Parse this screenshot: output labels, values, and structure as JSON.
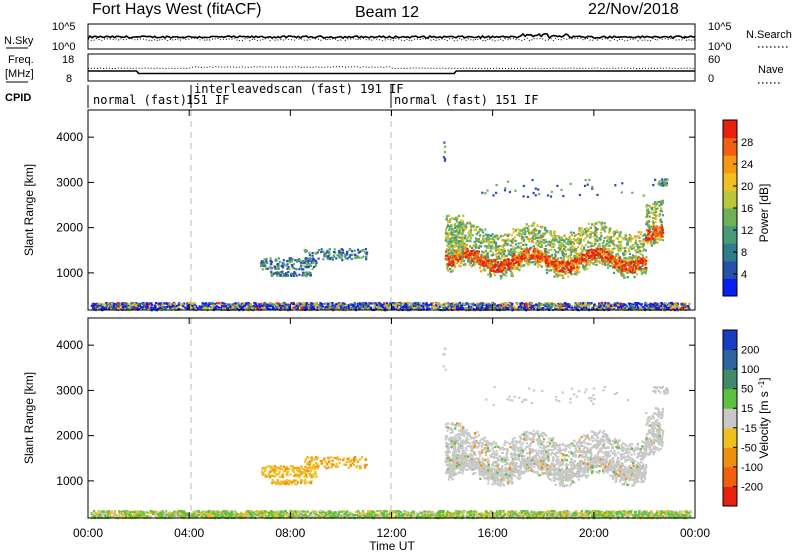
{
  "header": {
    "title": "Fort Hays West (fitACF)",
    "beam": "Beam 12",
    "date": "22/Nov/2018"
  },
  "chart_data": [
    {
      "type": "line",
      "panel": "noise",
      "ylabel_left": "N.Sky",
      "ylabel_right": "N.Search",
      "left_ticks": [
        "10^5",
        "10^0"
      ],
      "right_ticks": [
        "10^5",
        "10^0"
      ],
      "right_legend_style": "dotted"
    },
    {
      "type": "line",
      "panel": "frequency",
      "ylabel_left_line1": "Freq.",
      "ylabel_left_line2": "[MHz]",
      "left_ticks": [
        "18",
        "8"
      ],
      "ylabel_right": "Nave",
      "right_ticks": [
        "60",
        "0"
      ],
      "right_legend_style": "dotted"
    },
    {
      "type": "table",
      "panel": "cpid",
      "label": "CPID",
      "segments": [
        {
          "start_hour": 0,
          "end_hour": 4,
          "text": "normal (fast)"
        },
        {
          "start_hour": 4,
          "end_hour": 12,
          "text": "151 IF"
        },
        {
          "start_hour": 4,
          "end_hour": 12,
          "text": "interleavedscan (fast) 191 IF"
        },
        {
          "start_hour": 12,
          "end_hour": 24,
          "text": "normal (fast) 151 IF"
        }
      ]
    },
    {
      "type": "heatmap",
      "panel": "power",
      "ylabel": "Slant Range [km]",
      "yticks": [
        1000,
        2000,
        3000,
        4000
      ],
      "ylim": [
        180,
        4600
      ],
      "colorbar_label": "Power [dB]",
      "colorbar_ticks": [
        4,
        8,
        12,
        16,
        20,
        24,
        28
      ],
      "colorbar_colors": [
        "#0a1ef0",
        "#2a4fa8",
        "#2f7d8a",
        "#4a9a78",
        "#6fb05a",
        "#b8c83a",
        "#f0c020",
        "#f59a10",
        "#f06010",
        "#e82010"
      ],
      "xlim_hours": [
        0,
        24
      ],
      "vertical_dashed_at_hours": [
        4,
        12
      ]
    },
    {
      "type": "heatmap",
      "panel": "velocity",
      "ylabel": "Slant Range [km]",
      "yticks": [
        1000,
        2000,
        3000,
        4000
      ],
      "ylim": [
        180,
        4600
      ],
      "colorbar_label": "Velocity [m s^-1]",
      "colorbar_ticks": [
        "200",
        "100",
        "50",
        "15",
        "-15",
        "-50",
        "-100",
        "-200"
      ],
      "colorbar_colors": [
        "#1a3cc0",
        "#2f64a0",
        "#3f8a6a",
        "#5cc040",
        "#c8c8c8",
        "#f0c020",
        "#f09010",
        "#f06010",
        "#e82010"
      ],
      "xticks": [
        "00:00",
        "04:00",
        "08:00",
        "12:00",
        "16:00",
        "20:00",
        "00:00"
      ],
      "xlabel": "Time UT",
      "xlim_hours": [
        0,
        24
      ],
      "vertical_dashed_at_hours": [
        4,
        12
      ]
    }
  ]
}
